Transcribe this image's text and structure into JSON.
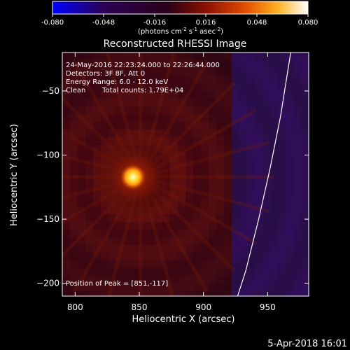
{
  "colorbar": {
    "ticks": [
      "-0.080",
      "-0.048",
      "-0.016",
      "0.016",
      "0.048",
      "0.080"
    ],
    "min": -0.08,
    "max": 0.08,
    "units_text": "(photons cm",
    "units_exp1": "-2",
    "units_mid": " s",
    "units_exp2": "-1",
    "units_mid2": " asec",
    "units_exp3": "-2",
    "units_close": ")",
    "stops": [
      "#0000ff",
      "#22004a",
      "#2a0020",
      "#7a0a00",
      "#d83800",
      "#ffa010",
      "#ffff80",
      "#ffffff"
    ]
  },
  "chart_data": {
    "type": "heatmap",
    "title": "Reconstructed RHESSI Image",
    "xlabel": "Heliocentric X (arcsec)",
    "ylabel": "Heliocentric Y (arcsec)",
    "xlim": [
      790,
      982
    ],
    "ylim": [
      -210,
      -20
    ],
    "x_ticks": [
      800,
      850,
      900,
      950
    ],
    "y_ticks": [
      -50,
      -100,
      -150,
      -200
    ],
    "x_tick_labels": [
      "800",
      "850",
      "900",
      "950"
    ],
    "y_tick_labels": [
      "−50",
      "−100",
      "−150",
      "−200"
    ],
    "annotations": [
      "24-May-2016 22:23:24.000 to 22:26:44.000",
      "Detectors: 3F 8F, Att 0",
      "Energy Range: 6.0 - 12.0 keV",
      "Clean",
      "Total counts: 1.79E+04"
    ],
    "peak_label": "Position of Peak = [851,-117]",
    "peak": {
      "x": 851,
      "y": -117
    },
    "limb": [
      [
        968,
        -20
      ],
      [
        960,
        -70
      ],
      [
        952,
        -110
      ],
      [
        943,
        -150
      ],
      [
        933,
        -190
      ],
      [
        925,
        -215
      ]
    ]
  },
  "footer": {
    "date": "5-Apr-2018 16:01"
  }
}
